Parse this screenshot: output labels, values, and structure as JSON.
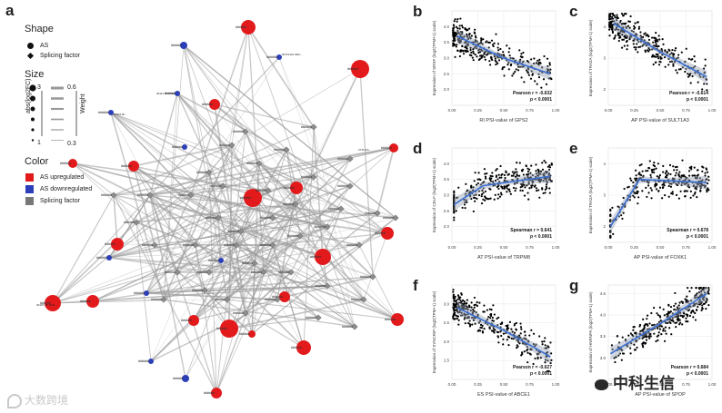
{
  "figure": {
    "panel_a": {
      "letter": "a",
      "legend": {
        "shape_title": "Shape",
        "shape_items": [
          "AS",
          "Splicing factor"
        ],
        "size_title": "Size",
        "size_scale_labels": [
          "3",
          "1"
        ],
        "size_axis_label": "abs(log2FC)",
        "weight_scale_labels": [
          "0.6",
          "0.3"
        ],
        "weight_axis_label": "Weight",
        "color_title": "Color",
        "color_items": [
          "AS upregulated",
          "AS downregulated",
          "Splicing factor"
        ],
        "colors": {
          "up": "#e31a1c",
          "down": "#2c3fb8",
          "sf": "#8c8c8c"
        }
      },
      "node_labels": [
        "33107 AP DCX...",
        "50719 ES SRC...",
        "40111 RI PREP",
        "2741 ES...",
        "30961 RI..."
      ]
    }
  },
  "chart_data": [
    {
      "panel": "b",
      "type": "scatter",
      "ylabel": "Expression of SRSF (log2(TPM+1) scale)",
      "xlabel": "RI PSI-value of GPS2",
      "xlim": [
        0,
        1
      ],
      "ylim": [
        1.5,
        4.5
      ],
      "xticks": [
        "0.00",
        "0.25",
        "0.50",
        "0.75",
        "1.00"
      ],
      "yticks": [
        "2.0",
        "2.5",
        "3.0",
        "3.5",
        "4.0"
      ],
      "stat_label": "Pearson r = -0.632",
      "p_label": "p < 0.0001",
      "trend": [
        [
          0.05,
          3.7
        ],
        [
          0.5,
          3.0
        ],
        [
          0.95,
          2.5
        ]
      ]
    },
    {
      "panel": "c",
      "type": "scatter",
      "ylabel": "Expression of TRA2A (log2(TPM+1) scale)",
      "xlabel": "AP PSI-value of SULT1A3",
      "xlim": [
        0,
        1
      ],
      "ylim": [
        1.5,
        4.5
      ],
      "xticks": [
        "0.00",
        "0.25",
        "0.50",
        "0.75",
        "1.00"
      ],
      "yticks": [
        "2",
        "3",
        "4"
      ],
      "stat_label": "Pearson r = -0.614",
      "p_label": "p < 0.0001",
      "trend": [
        [
          0.05,
          4.1
        ],
        [
          0.5,
          3.2
        ],
        [
          0.95,
          2.4
        ]
      ]
    },
    {
      "panel": "d",
      "type": "scatter",
      "ylabel": "Expression of CELF (log2(TPM+1) scale)",
      "xlabel": "AT PSI-value of TRPM8",
      "xlim": [
        0,
        1
      ],
      "ylim": [
        1.5,
        4.5
      ],
      "xticks": [
        "0.00",
        "0.25",
        "0.50",
        "0.75",
        "1.00"
      ],
      "yticks": [
        "2.0",
        "2.5",
        "3.0",
        "3.5",
        "4.0"
      ],
      "stat_label": "Spearman r = 0.641",
      "p_label": "p < 0.0001",
      "trend": [
        [
          0.02,
          2.7
        ],
        [
          0.3,
          3.3
        ],
        [
          0.95,
          3.6
        ]
      ]
    },
    {
      "panel": "e",
      "type": "scatter",
      "ylabel": "Expression of TRA2A (log2(TPM+1) scale)",
      "xlabel": "AP PSI-value of FOXK1",
      "xlim": [
        0,
        1
      ],
      "ylim": [
        1.5,
        4.5
      ],
      "xticks": [
        "0.00",
        "0.25",
        "0.50",
        "0.75",
        "1.00"
      ],
      "yticks": [
        "2",
        "3",
        "4"
      ],
      "stat_label": "Spearman r = 0.678",
      "p_label": "p < 0.0001",
      "trend": [
        [
          0.02,
          2.0
        ],
        [
          0.3,
          3.5
        ],
        [
          0.95,
          3.4
        ]
      ]
    },
    {
      "panel": "f",
      "type": "scatter",
      "ylabel": "Expression of SYNCRIP (log2(TPM+1) scale)",
      "xlabel": "ES PSI-value of ABCE1",
      "xlim": [
        0,
        1
      ],
      "ylim": [
        1.0,
        3.5
      ],
      "xticks": [
        "0.00",
        "0.25",
        "0.50",
        "0.75",
        "1.00"
      ],
      "yticks": [
        "1.5",
        "2.0",
        "2.5",
        "3.0"
      ],
      "stat_label": "Pearson r = -0.627",
      "p_label": "p < 0.0001",
      "trend": [
        [
          0.05,
          2.9
        ],
        [
          0.5,
          2.3
        ],
        [
          0.95,
          1.6
        ]
      ]
    },
    {
      "panel": "g",
      "type": "scatter",
      "ylabel": "Expression of HNRNPA (log2(TPM+1) scale)",
      "xlabel": "AP PSI-value of SPOP",
      "xlim": [
        0,
        1
      ],
      "ylim": [
        2.5,
        4.7
      ],
      "xticks": [
        "0.00",
        "0.25",
        "0.50",
        "0.75",
        "1.00"
      ],
      "yticks": [
        "3.0",
        "3.5",
        "4.0",
        "4.5"
      ],
      "stat_label": "Pearson r = 0.684",
      "p_label": "p < 0.0001",
      "trend": [
        [
          0.02,
          3.1
        ],
        [
          0.5,
          3.8
        ],
        [
          0.95,
          4.5
        ]
      ]
    }
  ],
  "watermarks": {
    "left": "大数跨境",
    "right": "中科生信"
  }
}
